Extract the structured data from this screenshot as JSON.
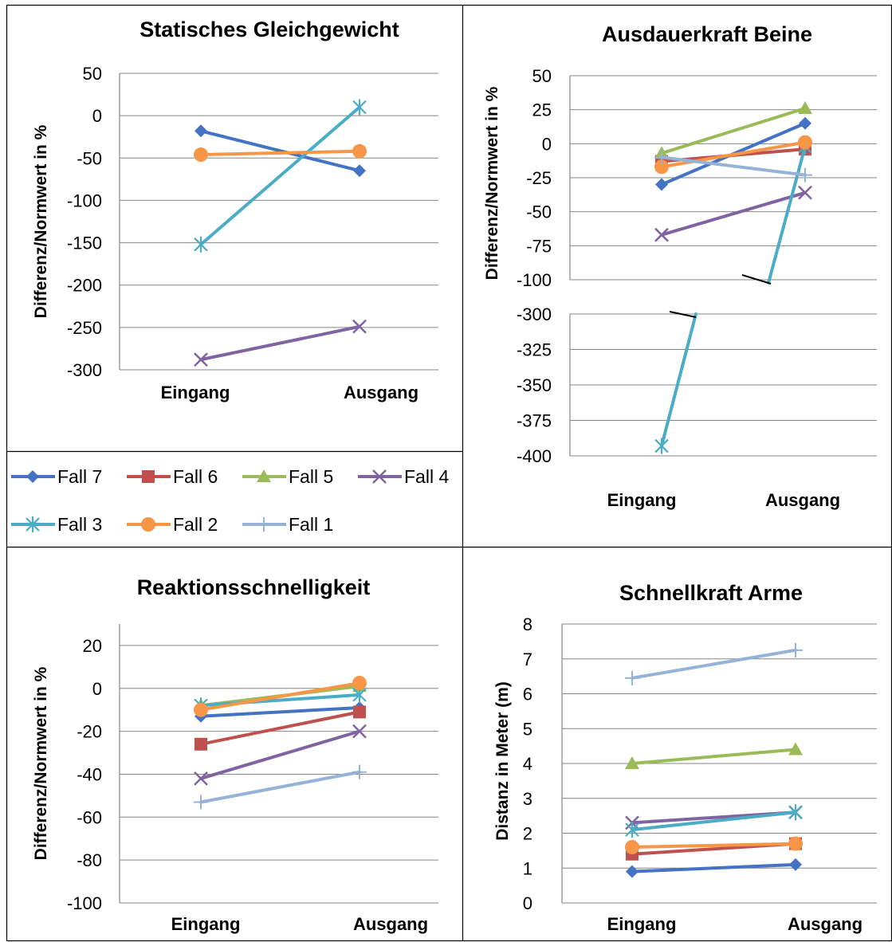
{
  "colors": {
    "Fall 7": "#4472c4",
    "Fall 6": "#c0504d",
    "Fall 5": "#9bbb59",
    "Fall 4": "#8064a2",
    "Fall 3": "#4bacc6",
    "Fall 2": "#f79646",
    "Fall 1": "#95b3d7"
  },
  "markers": {
    "Fall 7": "diamond",
    "Fall 6": "square",
    "Fall 5": "triangle",
    "Fall 4": "x",
    "Fall 3": "star",
    "Fall 2": "circle",
    "Fall 1": "plus"
  },
  "legend": {
    "items": [
      "Fall 7",
      "Fall 6",
      "Fall 5",
      "Fall 4",
      "Fall 3",
      "Fall 2",
      "Fall 1"
    ]
  },
  "chart_data": [
    {
      "type": "line",
      "title": "Statisches Gleichgewicht",
      "ylabel": "Differenz/Normwert in %",
      "categories": [
        "Eingang",
        "Ausgang"
      ],
      "ylim": [
        -300,
        50
      ],
      "yticks": [
        50,
        0,
        -50,
        -100,
        -150,
        -200,
        -250,
        -300
      ],
      "grid": true,
      "legend": "bottom",
      "series": [
        {
          "name": "Fall 7",
          "values": [
            -18,
            -65
          ]
        },
        {
          "name": "Fall 4",
          "values": [
            -288,
            -249
          ]
        },
        {
          "name": "Fall 3",
          "values": [
            -152,
            10
          ]
        },
        {
          "name": "Fall 2",
          "values": [
            -46,
            -42
          ]
        }
      ]
    },
    {
      "type": "line",
      "title": "Ausdauerkraft Beine",
      "ylabel": "Differenz/Normwert in %",
      "categories": [
        "Eingang",
        "Ausgang"
      ],
      "yticks": [
        50,
        25,
        0,
        -25,
        -50,
        -75,
        -100,
        -300,
        -325,
        -350,
        -375,
        -400
      ],
      "axis_break": {
        "upper": [
          -100,
          50
        ],
        "lower": [
          -400,
          -300
        ]
      },
      "grid": true,
      "series": [
        {
          "name": "Fall 7",
          "values": [
            -30,
            15
          ]
        },
        {
          "name": "Fall 6",
          "values": [
            -13,
            -4
          ]
        },
        {
          "name": "Fall 5",
          "values": [
            -7,
            26
          ]
        },
        {
          "name": "Fall 4",
          "values": [
            -67,
            -36
          ]
        },
        {
          "name": "Fall 3",
          "values": [
            -393,
            -2
          ]
        },
        {
          "name": "Fall 2",
          "values": [
            -17,
            1
          ]
        },
        {
          "name": "Fall 1",
          "values": [
            -10,
            -23
          ]
        }
      ]
    },
    {
      "type": "line",
      "title": "Reaktionsschnelligkeit",
      "ylabel": "Differenz/Normwert in %",
      "categories": [
        "Eingang",
        "Ausgang"
      ],
      "ylim": [
        -100,
        30
      ],
      "yticks": [
        20,
        0,
        -20,
        -40,
        -60,
        -80,
        -100
      ],
      "grid": true,
      "series": [
        {
          "name": "Fall 7",
          "values": [
            -13,
            -9
          ]
        },
        {
          "name": "Fall 6",
          "values": [
            -26,
            -11
          ]
        },
        {
          "name": "Fall 5",
          "values": [
            -8,
            1
          ]
        },
        {
          "name": "Fall 4",
          "values": [
            -42,
            -20
          ]
        },
        {
          "name": "Fall 3",
          "values": [
            -8,
            -3
          ]
        },
        {
          "name": "Fall 2",
          "values": [
            -10,
            2.5
          ]
        },
        {
          "name": "Fall 1",
          "values": [
            -53,
            -39
          ]
        }
      ]
    },
    {
      "type": "line",
      "title": "Schnellkraft Arme",
      "ylabel": "Distanz in Meter (m)",
      "categories": [
        "Eingang",
        "Ausgang"
      ],
      "ylim": [
        0,
        8
      ],
      "yticks": [
        8,
        7,
        6,
        5,
        4,
        3,
        2,
        1,
        0
      ],
      "grid": true,
      "series": [
        {
          "name": "Fall 7",
          "values": [
            0.9,
            1.1
          ]
        },
        {
          "name": "Fall 6",
          "values": [
            1.4,
            1.7
          ]
        },
        {
          "name": "Fall 5",
          "values": [
            4.0,
            4.4
          ]
        },
        {
          "name": "Fall 4",
          "values": [
            2.3,
            2.6
          ]
        },
        {
          "name": "Fall 3",
          "values": [
            2.1,
            2.6
          ]
        },
        {
          "name": "Fall 2",
          "values": [
            1.6,
            1.7
          ]
        },
        {
          "name": "Fall 1",
          "values": [
            6.45,
            7.25
          ]
        }
      ]
    }
  ]
}
